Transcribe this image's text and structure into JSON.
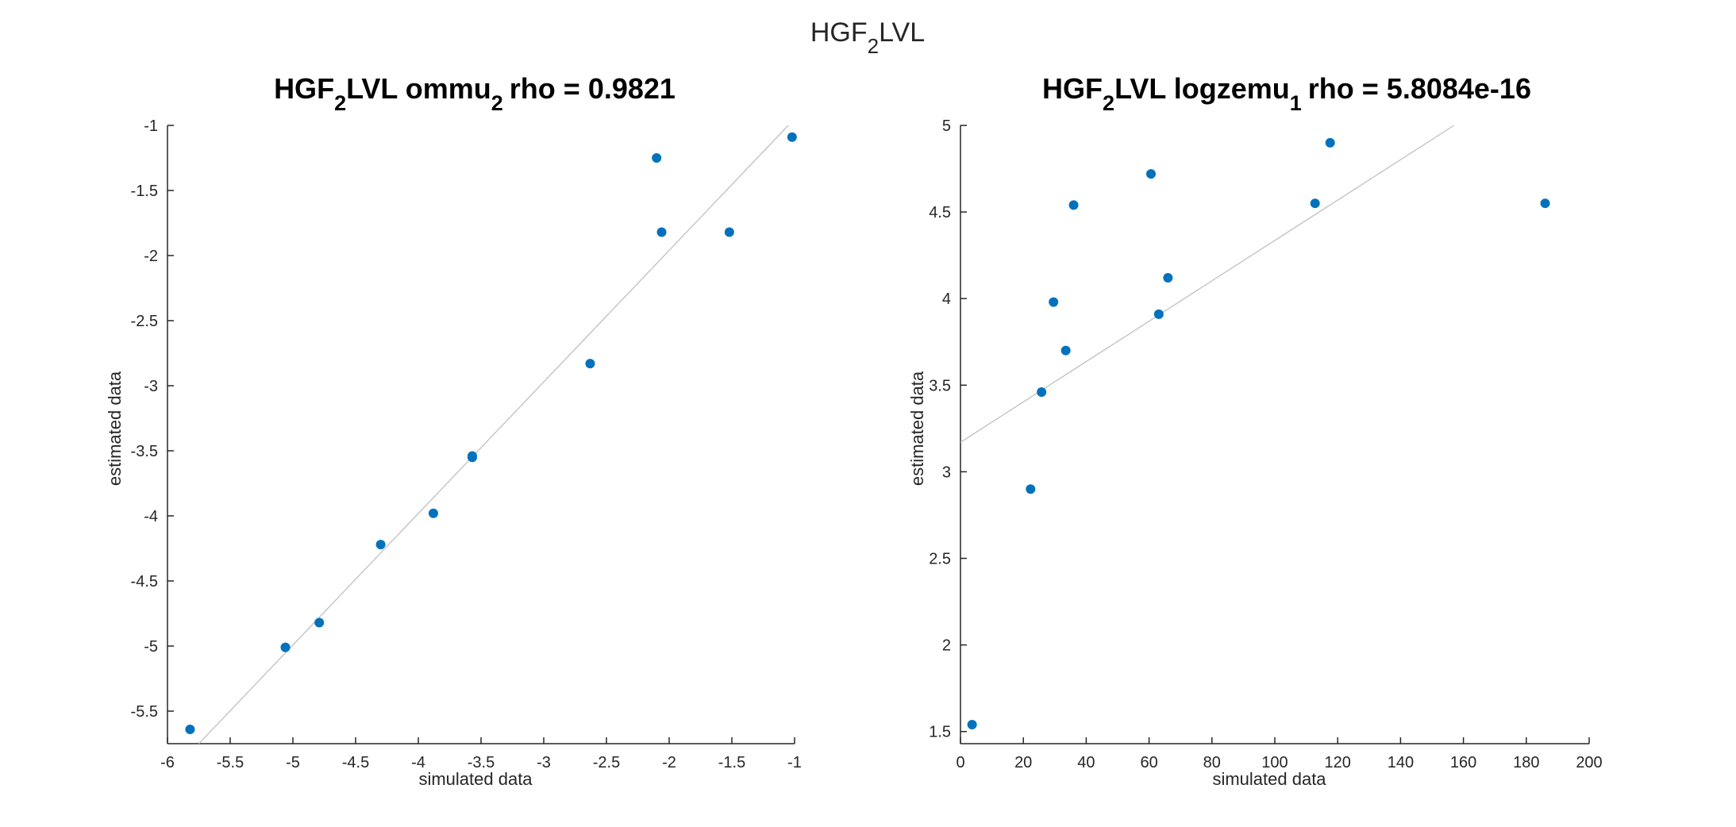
{
  "figure": {
    "suptitle": {
      "pre": "HGF",
      "sub": "2",
      "post": "LVL"
    }
  },
  "chart_data": [
    {
      "type": "scatter",
      "title": {
        "pre": "HGF",
        "sub1": "2",
        "mid": "LVL ommu",
        "sub2": "2",
        "post": "rho = 0.9821"
      },
      "xlabel": "simulated data",
      "ylabel": "estimated data",
      "xlim": [
        -6,
        -1
      ],
      "ylim": [
        -5.75,
        -1
      ],
      "xticks": [
        -6,
        -5.5,
        -5,
        -4.5,
        -4,
        -3.5,
        -3,
        -2.5,
        -2,
        -1.5,
        -1
      ],
      "yticks": [
        -5.5,
        -5,
        -4.5,
        -4,
        -3.5,
        -3,
        -2.5,
        -2,
        -1.5,
        -1
      ],
      "grid": false,
      "points": [
        {
          "x": -5.82,
          "y": -5.64
        },
        {
          "x": -5.06,
          "y": -5.01
        },
        {
          "x": -4.79,
          "y": -4.82
        },
        {
          "x": -4.3,
          "y": -4.22
        },
        {
          "x": -3.88,
          "y": -3.98
        },
        {
          "x": -3.57,
          "y": -3.54
        },
        {
          "x": -3.57,
          "y": -3.55
        },
        {
          "x": -2.63,
          "y": -2.83
        },
        {
          "x": -2.1,
          "y": -1.25
        },
        {
          "x": -2.06,
          "y": -1.82
        },
        {
          "x": -1.52,
          "y": -1.82
        },
        {
          "x": -1.02,
          "y": -1.09
        }
      ],
      "fit_line": {
        "x": [
          -5.75,
          -1.05
        ],
        "y": [
          -5.75,
          -1.0
        ]
      },
      "marker_color": "#0072BD",
      "line_color": "#c0c0c0"
    },
    {
      "type": "scatter",
      "title": {
        "pre": "HGF",
        "sub1": "2",
        "mid": "LVL logzemu",
        "sub2": "1",
        "post": "rho = 5.8084e-16"
      },
      "xlabel": "simulated data",
      "ylabel": "estimated data",
      "xlim": [
        0,
        200
      ],
      "ylim": [
        1.43,
        5
      ],
      "xticks": [
        0,
        20,
        40,
        60,
        80,
        100,
        120,
        140,
        160,
        180,
        200
      ],
      "yticks": [
        1.5,
        2,
        2.5,
        3,
        3.5,
        4,
        4.5,
        5
      ],
      "grid": false,
      "points": [
        {
          "x": 3.7,
          "y": 1.54
        },
        {
          "x": 22.3,
          "y": 2.9
        },
        {
          "x": 25.8,
          "y": 3.46
        },
        {
          "x": 29.6,
          "y": 3.98
        },
        {
          "x": 33.5,
          "y": 3.7
        },
        {
          "x": 36.0,
          "y": 4.54
        },
        {
          "x": 60.6,
          "y": 4.72
        },
        {
          "x": 63.1,
          "y": 3.91
        },
        {
          "x": 66.0,
          "y": 4.12
        },
        {
          "x": 112.8,
          "y": 4.55
        },
        {
          "x": 117.6,
          "y": 4.9
        },
        {
          "x": 186.0,
          "y": 4.55
        }
      ],
      "fit_line": {
        "x": [
          0,
          157
        ],
        "y": [
          3.17,
          5.0
        ]
      },
      "marker_color": "#0072BD",
      "line_color": "#c0c0c0"
    }
  ]
}
